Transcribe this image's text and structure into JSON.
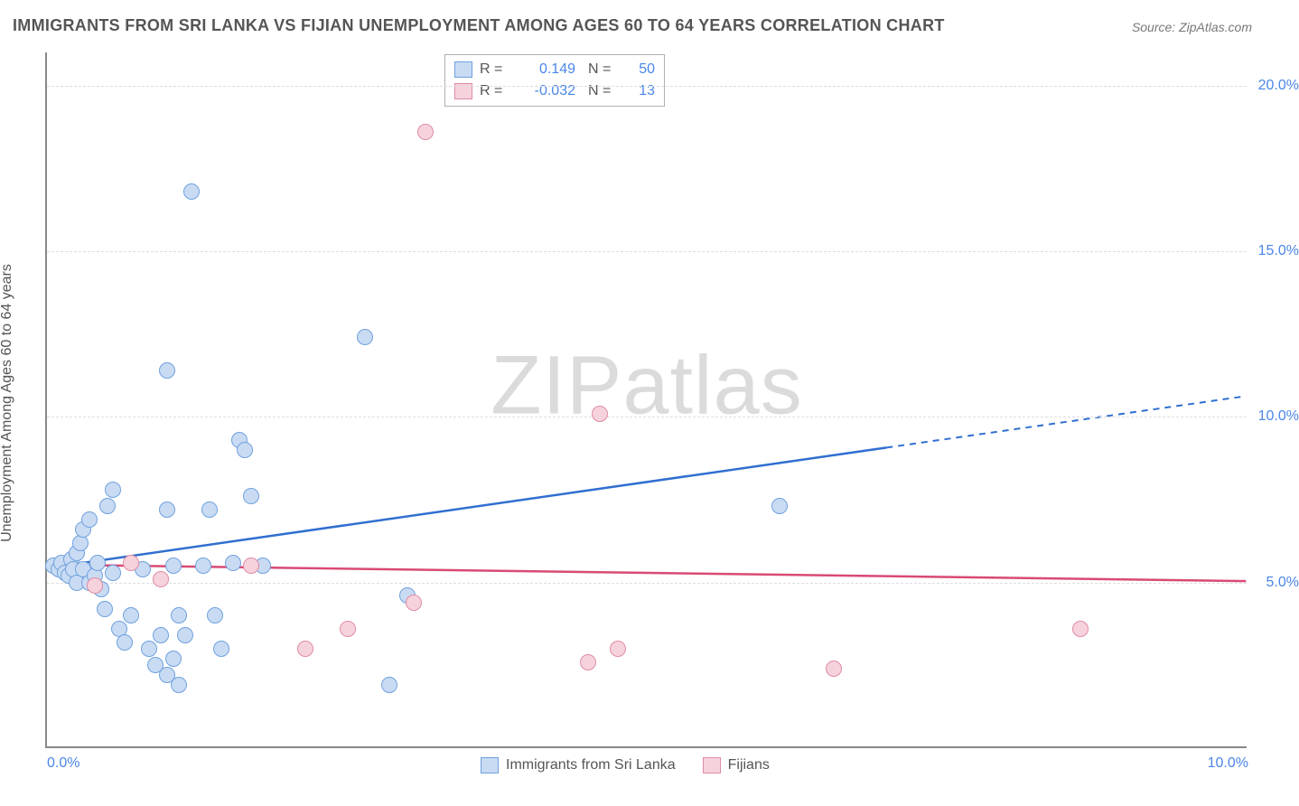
{
  "title": "IMMIGRANTS FROM SRI LANKA VS FIJIAN UNEMPLOYMENT AMONG AGES 60 TO 64 YEARS CORRELATION CHART",
  "source": "Source: ZipAtlas.com",
  "ylabel": "Unemployment Among Ages 60 to 64 years",
  "watermark": "ZIPatlas",
  "chart": {
    "type": "scatter",
    "background_color": "#ffffff",
    "grid_color": "#dddddd",
    "axis_color": "#888888",
    "xlim": [
      0,
      10
    ],
    "ylim": [
      0,
      21
    ],
    "xticks": [
      {
        "v": 0,
        "label": "0.0%"
      },
      {
        "v": 10,
        "label": "10.0%"
      }
    ],
    "yticks": [
      {
        "v": 5,
        "label": "5.0%"
      },
      {
        "v": 10,
        "label": "10.0%"
      },
      {
        "v": 15,
        "label": "15.0%"
      },
      {
        "v": 20,
        "label": "20.0%"
      }
    ],
    "tick_fontsize": 16,
    "tick_color": "#4a86e8",
    "label_fontsize": 16,
    "label_color": "#555555",
    "marker_radius": 9,
    "marker_border_width": 1.5
  },
  "series": [
    {
      "name": "Immigrants from Sri Lanka",
      "fill": "#c9dbf3",
      "stroke": "#6fa1de",
      "line_color": "#2f6fd0",
      "R": "0.149",
      "N": "50",
      "trend": {
        "x1": 0,
        "y1": 5.4,
        "x2": 10,
        "y2": 10.6,
        "solid_until_x": 7.0
      },
      "points": [
        [
          0.05,
          5.5
        ],
        [
          0.1,
          5.4
        ],
        [
          0.12,
          5.6
        ],
        [
          0.15,
          5.3
        ],
        [
          0.18,
          5.2
        ],
        [
          0.2,
          5.7
        ],
        [
          0.22,
          5.4
        ],
        [
          0.25,
          5.0
        ],
        [
          0.25,
          5.9
        ],
        [
          0.28,
          6.2
        ],
        [
          0.3,
          6.6
        ],
        [
          0.3,
          5.4
        ],
        [
          0.35,
          5.0
        ],
        [
          0.35,
          6.9
        ],
        [
          0.4,
          5.2
        ],
        [
          0.42,
          5.6
        ],
        [
          0.45,
          4.8
        ],
        [
          0.48,
          4.2
        ],
        [
          0.5,
          7.3
        ],
        [
          0.55,
          5.3
        ],
        [
          0.55,
          7.8
        ],
        [
          0.6,
          3.6
        ],
        [
          0.65,
          3.2
        ],
        [
          0.7,
          4.0
        ],
        [
          0.8,
          5.4
        ],
        [
          0.85,
          3.0
        ],
        [
          0.9,
          2.5
        ],
        [
          0.95,
          3.4
        ],
        [
          1.0,
          11.4
        ],
        [
          1.0,
          2.2
        ],
        [
          1.0,
          7.2
        ],
        [
          1.05,
          5.5
        ],
        [
          1.05,
          2.7
        ],
        [
          1.1,
          4.0
        ],
        [
          1.1,
          1.9
        ],
        [
          1.15,
          3.4
        ],
        [
          1.2,
          16.8
        ],
        [
          1.3,
          5.5
        ],
        [
          1.35,
          7.2
        ],
        [
          1.4,
          4.0
        ],
        [
          1.45,
          3.0
        ],
        [
          1.55,
          5.6
        ],
        [
          1.6,
          9.3
        ],
        [
          1.65,
          9.0
        ],
        [
          1.7,
          7.6
        ],
        [
          1.8,
          5.5
        ],
        [
          2.65,
          12.4
        ],
        [
          2.85,
          1.9
        ],
        [
          3.0,
          4.6
        ],
        [
          6.1,
          7.3
        ]
      ]
    },
    {
      "name": "Fijians",
      "fill": "#f6d3dc",
      "stroke": "#e08ba3",
      "line_color": "#d94a74",
      "R": "-0.032",
      "N": "13",
      "trend": {
        "x1": 0,
        "y1": 5.5,
        "x2": 10,
        "y2": 5.0,
        "solid_until_x": 10
      },
      "points": [
        [
          0.4,
          4.9
        ],
        [
          0.7,
          5.6
        ],
        [
          0.95,
          5.1
        ],
        [
          1.7,
          5.5
        ],
        [
          2.15,
          3.0
        ],
        [
          2.5,
          3.6
        ],
        [
          3.05,
          4.4
        ],
        [
          3.15,
          18.6
        ],
        [
          4.5,
          2.6
        ],
        [
          4.6,
          10.1
        ],
        [
          4.75,
          3.0
        ],
        [
          6.55,
          2.4
        ],
        [
          8.6,
          3.6
        ]
      ]
    }
  ],
  "legend_bottom": [
    {
      "label": "Immigrants from Sri Lanka"
    },
    {
      "label": "Fijians"
    }
  ]
}
